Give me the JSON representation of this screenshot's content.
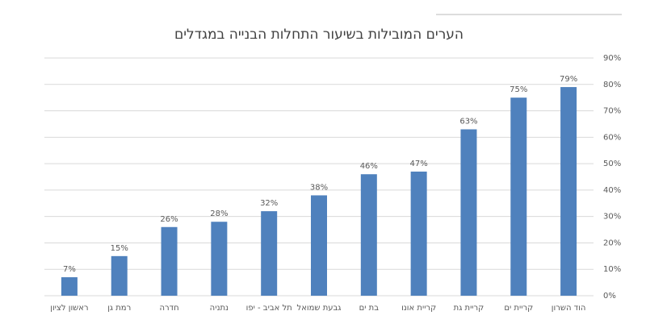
{
  "chart_data": {
    "type": "bar",
    "title": "הערים המובילות בשיעור התחלות הבנייה במגדלים",
    "categories": [
      "ראשון לציון",
      "רמת גן",
      "חדרה",
      "נתניה",
      "תל אביב - יפו",
      "גבעת שמואל",
      "בת ים",
      "קריית אונו",
      "קריית גת",
      "קריית ים",
      "הוד השרון"
    ],
    "values": [
      7,
      15,
      26,
      28,
      32,
      38,
      46,
      47,
      63,
      75,
      79
    ],
    "value_labels": [
      "7%",
      "15%",
      "26%",
      "28%",
      "32%",
      "38%",
      "46%",
      "47%",
      "63%",
      "75%",
      "79%"
    ],
    "color": "#4f81bd",
    "ylim": [
      0,
      90
    ],
    "yticks": [
      {
        "value": 0,
        "label": "0%"
      },
      {
        "value": 10,
        "label": "10%"
      },
      {
        "value": 20,
        "label": "20%"
      },
      {
        "value": 30,
        "label": "30%"
      },
      {
        "value": 40,
        "label": "40%"
      },
      {
        "value": 50,
        "label": "50%"
      },
      {
        "value": 60,
        "label": "60%"
      },
      {
        "value": 70,
        "label": "70%"
      },
      {
        "value": 80,
        "label": "80%"
      },
      {
        "value": 90,
        "label": "90%"
      }
    ],
    "grid": true
  }
}
